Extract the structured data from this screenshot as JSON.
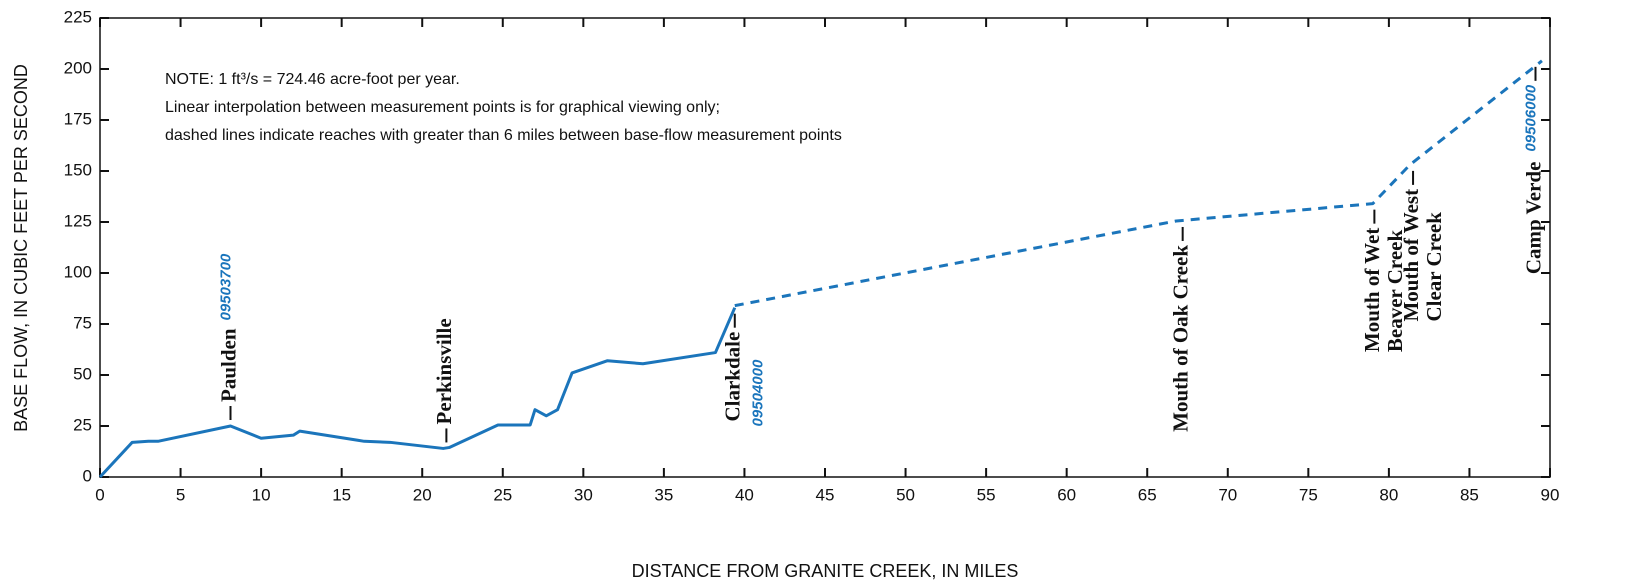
{
  "chart_data": {
    "type": "line",
    "x_label": "DISTANCE FROM GRANITE CREEK, IN MILES",
    "y_label": "BASE FLOW, IN CUBIC FEET PER SECOND",
    "note": [
      "NOTE:  1 ft³/s = 724.46 acre-foot per year.",
      "Linear interpolation between measurement points is for graphical viewing only;",
      "dashed lines indicate reaches with greater than 6 miles between base-flow measurement points"
    ],
    "xlim": [
      0,
      90
    ],
    "xticks": [
      0,
      5,
      10,
      15,
      20,
      25,
      30,
      35,
      40,
      45,
      50,
      55,
      60,
      65,
      70,
      75,
      80,
      85,
      90
    ],
    "ylim": [
      0,
      225
    ],
    "yticks": [
      0,
      25,
      50,
      75,
      100,
      125,
      150,
      175,
      200,
      225
    ],
    "series": [
      {
        "color": "#1b75bb",
        "dashed": false,
        "x": [
          0,
          2,
          3,
          3.6,
          8.1,
          10,
          12,
          12.4,
          16,
          16.4,
          18,
          21.3,
          21.7,
          24.7,
          26.7,
          27,
          27.7,
          28.4,
          29.3,
          31.5,
          33.7,
          38.2,
          39.4
        ],
        "values": [
          0,
          17,
          17.5,
          17.5,
          25,
          19,
          20.5,
          22.5,
          18,
          17.5,
          17,
          14,
          14.5,
          25.5,
          25.5,
          33,
          30,
          33,
          51,
          57,
          55.5,
          61,
          83
        ]
      },
      {
        "color": "#1b75bb",
        "dashed": true,
        "x": [
          39.4,
          66.8,
          79,
          81.3,
          89.5
        ],
        "values": [
          84,
          125.5,
          134,
          153,
          204
        ]
      }
    ],
    "sites": [
      {
        "lines": [
          "Paulden"
        ],
        "station": "09503700",
        "x": 8.1,
        "y": 25,
        "side": "above"
      },
      {
        "lines": [
          "Perkinsville"
        ],
        "x": 21.5,
        "y": 14,
        "side": "above"
      },
      {
        "lines": [
          "Clarkdale"
        ],
        "station": "09504000",
        "x": 39.4,
        "y": 83,
        "side": "below"
      },
      {
        "lines": [
          "Mouth of Oak Creek"
        ],
        "x": 67.2,
        "y": 125.5,
        "side": "below"
      },
      {
        "lines": [
          "Mouth of Wet",
          "Beaver Creek"
        ],
        "x": 79.1,
        "y": 134,
        "side": "below"
      },
      {
        "lines": [
          "Mouth of West",
          "Clear Creek"
        ],
        "x": 81.5,
        "y": 153,
        "side": "below"
      },
      {
        "lines": [
          "Camp Verde"
        ],
        "station": "09506000",
        "x": 89.1,
        "y": 204,
        "side": "below"
      }
    ],
    "station_color": "#1a75bc"
  }
}
